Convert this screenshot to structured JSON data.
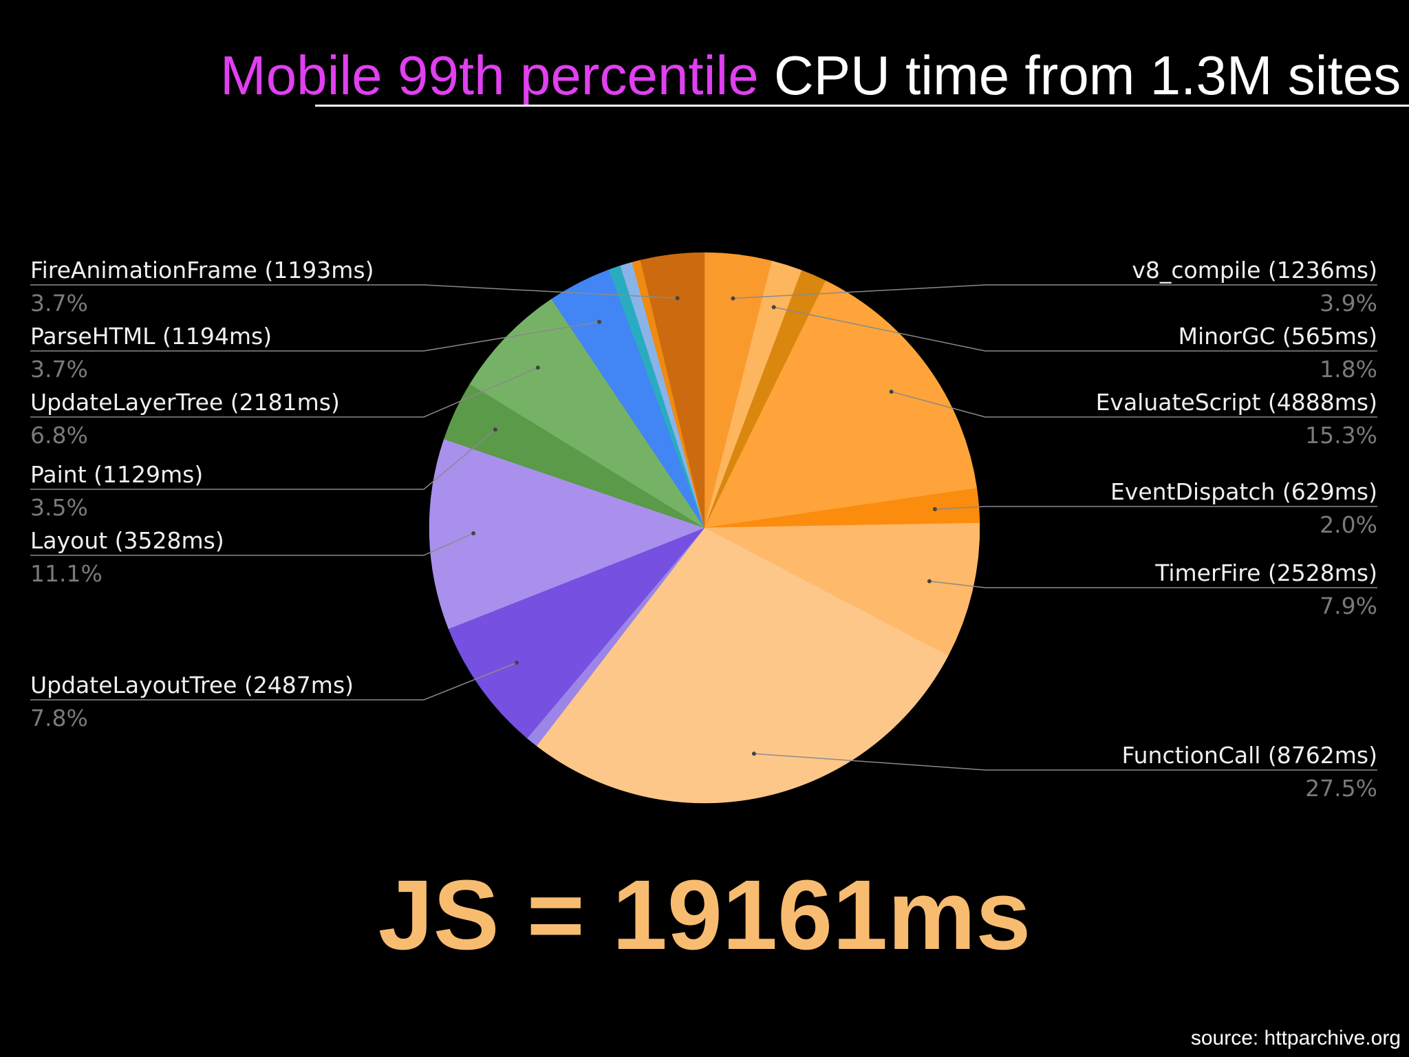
{
  "title": {
    "highlight": "Mobile 99th percentile",
    "rest": "CPU time from 1.3M sites"
  },
  "js_total": "JS = 19161ms",
  "source": "source: httparchive.org",
  "chart_data": {
    "type": "pie",
    "start_angle_deg": 0,
    "direction": "clockwise",
    "slices": [
      {
        "name": "v8_compile",
        "ms": 1236,
        "percent": 3.9,
        "label": "v8_compile (1236ms)",
        "pct_label": "3.9%",
        "color": "#fb9a2c",
        "labeled": true,
        "side": "right"
      },
      {
        "name": "MinorGC",
        "ms": 565,
        "percent": 1.8,
        "label": "MinorGC (565ms)",
        "pct_label": "1.8%",
        "color": "#fdb55e",
        "labeled": true,
        "side": "right"
      },
      {
        "name": "",
        "percent": 1.5,
        "color": "#d9870e",
        "labeled": false
      },
      {
        "name": "EvaluateScript",
        "ms": 4888,
        "percent": 15.3,
        "label": "EvaluateScript (4888ms)",
        "pct_label": "15.3%",
        "color": "#fea43a",
        "labeled": true,
        "side": "right"
      },
      {
        "name": "EventDispatch",
        "ms": 629,
        "percent": 2.0,
        "label": "EventDispatch (629ms)",
        "pct_label": "2.0%",
        "color": "#fb8c0e",
        "labeled": true,
        "side": "right"
      },
      {
        "name": "TimerFire",
        "ms": 2528,
        "percent": 7.9,
        "label": "TimerFire (2528ms)",
        "pct_label": "7.9%",
        "color": "#feb96a",
        "labeled": true,
        "side": "right"
      },
      {
        "name": "FunctionCall",
        "ms": 8762,
        "percent": 27.5,
        "label": "FunctionCall (8762ms)",
        "pct_label": "27.5%",
        "color": "#fec78a",
        "labeled": true,
        "side": "right"
      },
      {
        "name": "",
        "percent": 0.7,
        "color": "#9b86e8",
        "labeled": false
      },
      {
        "name": "UpdateLayoutTree",
        "ms": 2487,
        "percent": 7.8,
        "label": "UpdateLayoutTree (2487ms)",
        "pct_label": "7.8%",
        "color": "#7650e0",
        "labeled": true,
        "side": "left"
      },
      {
        "name": "Layout",
        "ms": 3528,
        "percent": 11.1,
        "label": "Layout (3528ms)",
        "pct_label": "11.1%",
        "color": "#a990ec",
        "labeled": true,
        "side": "left"
      },
      {
        "name": "Paint",
        "ms": 1129,
        "percent": 3.5,
        "label": "Paint (1129ms)",
        "pct_label": "3.5%",
        "color": "#5a9a48",
        "labeled": true,
        "side": "left"
      },
      {
        "name": "UpdateLayerTree",
        "ms": 2181,
        "percent": 6.8,
        "label": "UpdateLayerTree (2181ms)",
        "pct_label": "6.8%",
        "color": "#76b266",
        "labeled": true,
        "side": "left"
      },
      {
        "name": "ParseHTML",
        "ms": 1194,
        "percent": 3.7,
        "label": "ParseHTML (1194ms)",
        "pct_label": "3.7%",
        "color": "#4285f4",
        "labeled": true,
        "side": "left"
      },
      {
        "name": "",
        "percent": 0.7,
        "color": "#2aacc0",
        "labeled": false
      },
      {
        "name": "",
        "percent": 0.7,
        "color": "#8ab4e8",
        "labeled": false
      },
      {
        "name": "",
        "percent": 0.5,
        "color": "#f08a10",
        "labeled": false
      },
      {
        "name": "FireAnimationFrame",
        "ms": 1193,
        "percent": 3.7,
        "label": "FireAnimationFrame (1193ms)",
        "pct_label": "3.7%",
        "color": "#cc6a10",
        "labeled": true,
        "side": "left"
      }
    ]
  }
}
